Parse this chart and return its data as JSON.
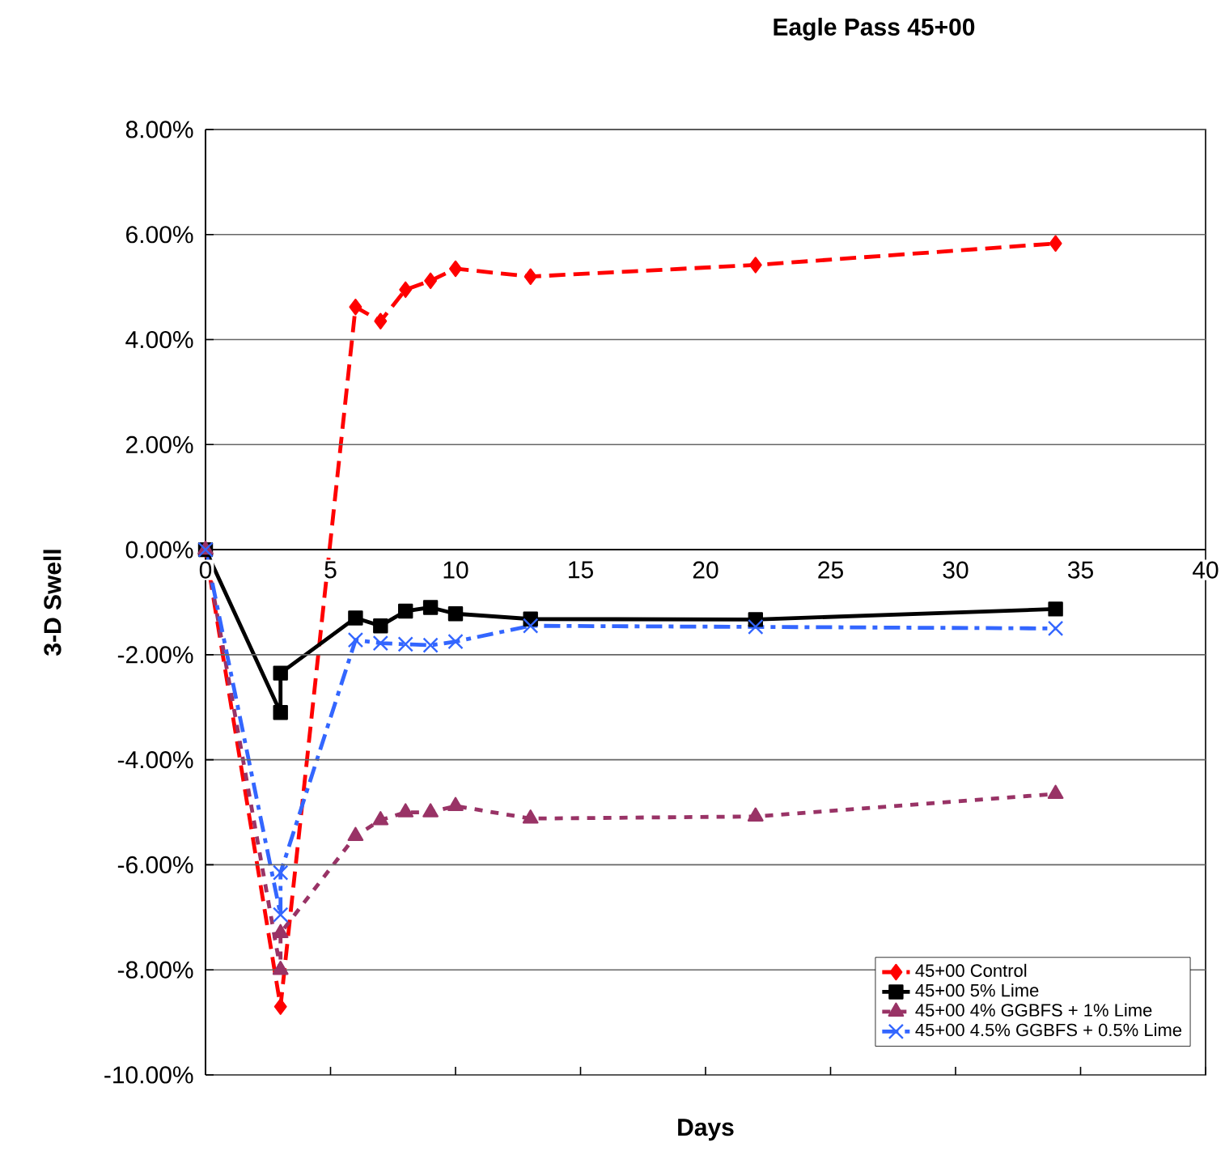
{
  "chart_data": {
    "type": "line",
    "title": "Eagle Pass 45+00",
    "xlabel": "Days",
    "ylabel": "3-D Swell",
    "xlim": [
      0,
      40
    ],
    "xticks": [
      0,
      5,
      10,
      15,
      20,
      25,
      30,
      35,
      40
    ],
    "ylim": [
      -10,
      8
    ],
    "yticks": [
      {
        "value": -10,
        "label": "-10.00%"
      },
      {
        "value": -8,
        "label": "-8.00%"
      },
      {
        "value": -6,
        "label": "-6.00%"
      },
      {
        "value": -4,
        "label": "-4.00%"
      },
      {
        "value": -2,
        "label": "-2.00%"
      },
      {
        "value": 0,
        "label": "0.00%"
      },
      {
        "value": 2,
        "label": "2.00%"
      },
      {
        "value": 4,
        "label": "4.00%"
      },
      {
        "value": 6,
        "label": "6.00%"
      },
      {
        "value": 8,
        "label": "8.00%"
      }
    ],
    "grid": "y",
    "legend": "bottom right",
    "series": [
      {
        "name": "45+00 Control",
        "color": "#ff0000",
        "marker": "diamond",
        "line_style": "dashed",
        "x": [
          0,
          3,
          6,
          7,
          8,
          9,
          10,
          13,
          22,
          34
        ],
        "values": [
          0,
          -8.7,
          4.62,
          4.35,
          4.95,
          5.12,
          5.35,
          5.2,
          5.42,
          5.83
        ]
      },
      {
        "name": "45+00 5% Lime",
        "color": "#000000",
        "marker": "square",
        "line_style": "solid",
        "x": [
          0,
          3,
          3,
          6,
          7,
          8,
          9,
          10,
          13,
          22,
          34
        ],
        "values": [
          0,
          -3.1,
          -2.35,
          -1.3,
          -1.45,
          -1.17,
          -1.1,
          -1.22,
          -1.32,
          -1.33,
          -1.13
        ]
      },
      {
        "name": "45+00 4% GGBFS + 1% Lime",
        "color": "#993366",
        "marker": "triangle",
        "line_style": "dotted",
        "x": [
          0,
          3,
          3,
          6,
          7,
          8,
          9,
          10,
          13,
          22,
          34
        ],
        "values": [
          0,
          -8.0,
          -7.3,
          -5.45,
          -5.15,
          -5.0,
          -5.0,
          -4.88,
          -5.12,
          -5.08,
          -4.65
        ]
      },
      {
        "name": "45+00 4.5% GGBFS + 0.5% Lime",
        "color": "#3366ff",
        "marker": "cross",
        "line_style": "dashdot",
        "x": [
          0,
          3,
          3,
          6,
          7,
          8,
          9,
          10,
          13,
          22,
          34
        ],
        "values": [
          0,
          -6.95,
          -6.15,
          -1.72,
          -1.78,
          -1.8,
          -1.82,
          -1.75,
          -1.45,
          -1.47,
          -1.5
        ]
      }
    ]
  }
}
